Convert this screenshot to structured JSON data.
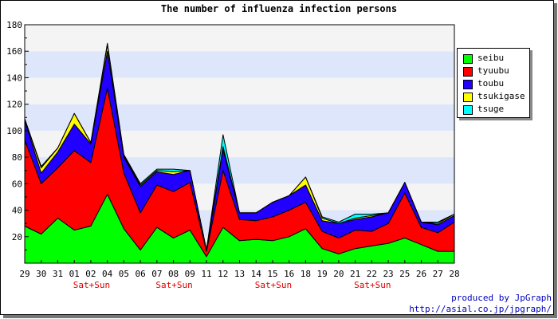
{
  "chart_data": {
    "type": "area",
    "title": "The number of influenza infection persons",
    "stacked": true,
    "categories": [
      "29",
      "30",
      "31",
      "01",
      "02",
      "04",
      "05",
      "06",
      "07",
      "08",
      "09",
      "11",
      "12",
      "13",
      "14",
      "15",
      "16",
      "18",
      "19",
      "20",
      "21",
      "22",
      "23",
      "25",
      "26",
      "27",
      "28"
    ],
    "sublabels": [
      "",
      "",
      "",
      "",
      "Sat+Sun",
      "",
      "",
      "",
      "",
      "Sat+Sun",
      "",
      "",
      "",
      "",
      "",
      "Sat+Sun",
      "",
      "",
      "",
      "",
      "",
      "Sat+Sun",
      "",
      "",
      "",
      "",
      ""
    ],
    "ylim": [
      0,
      180
    ],
    "yticks": [
      20,
      40,
      60,
      80,
      100,
      120,
      140,
      160,
      180
    ],
    "grid": true,
    "legend_position": "right",
    "series": [
      {
        "name": "seibu",
        "color": "#00ff00",
        "values": [
          28,
          22,
          34,
          25,
          28,
          52,
          26,
          10,
          27,
          19,
          25,
          5,
          27,
          17,
          18,
          17,
          20,
          26,
          11,
          7,
          11,
          13,
          15,
          19,
          14,
          9,
          9
        ]
      },
      {
        "name": "tyuubu",
        "color": "#ff0000",
        "values": [
          65,
          38,
          38,
          60,
          48,
          80,
          42,
          28,
          32,
          35,
          36,
          4,
          43,
          16,
          14,
          18,
          20,
          20,
          13,
          12,
          14,
          11,
          15,
          34,
          13,
          14,
          22
        ]
      },
      {
        "name": "toubu",
        "color": "#2200ff",
        "values": [
          15,
          8,
          12,
          20,
          14,
          28,
          12,
          20,
          10,
          13,
          9,
          1,
          16,
          5,
          6,
          11,
          11,
          13,
          8,
          11,
          8,
          11,
          8,
          8,
          4,
          6,
          5
        ]
      },
      {
        "name": "tsukigase",
        "color": "#ffff00",
        "values": [
          1,
          4,
          3,
          8,
          1,
          5,
          1,
          1,
          1,
          2,
          0,
          0,
          2,
          0,
          0,
          0,
          0,
          6,
          2,
          0,
          1,
          1,
          0,
          0,
          0,
          1,
          1
        ]
      },
      {
        "name": "tsuge",
        "color": "#00ffff",
        "values": [
          0,
          1,
          0,
          0,
          0,
          1,
          1,
          1,
          1,
          2,
          0,
          0,
          9,
          0,
          0,
          0,
          0,
          0,
          1,
          1,
          3,
          1,
          0,
          0,
          0,
          1,
          0
        ]
      }
    ]
  },
  "credit": {
    "line1": "produced by JpGraph",
    "line2": "http://asial.co.jp/jpgraph/"
  }
}
